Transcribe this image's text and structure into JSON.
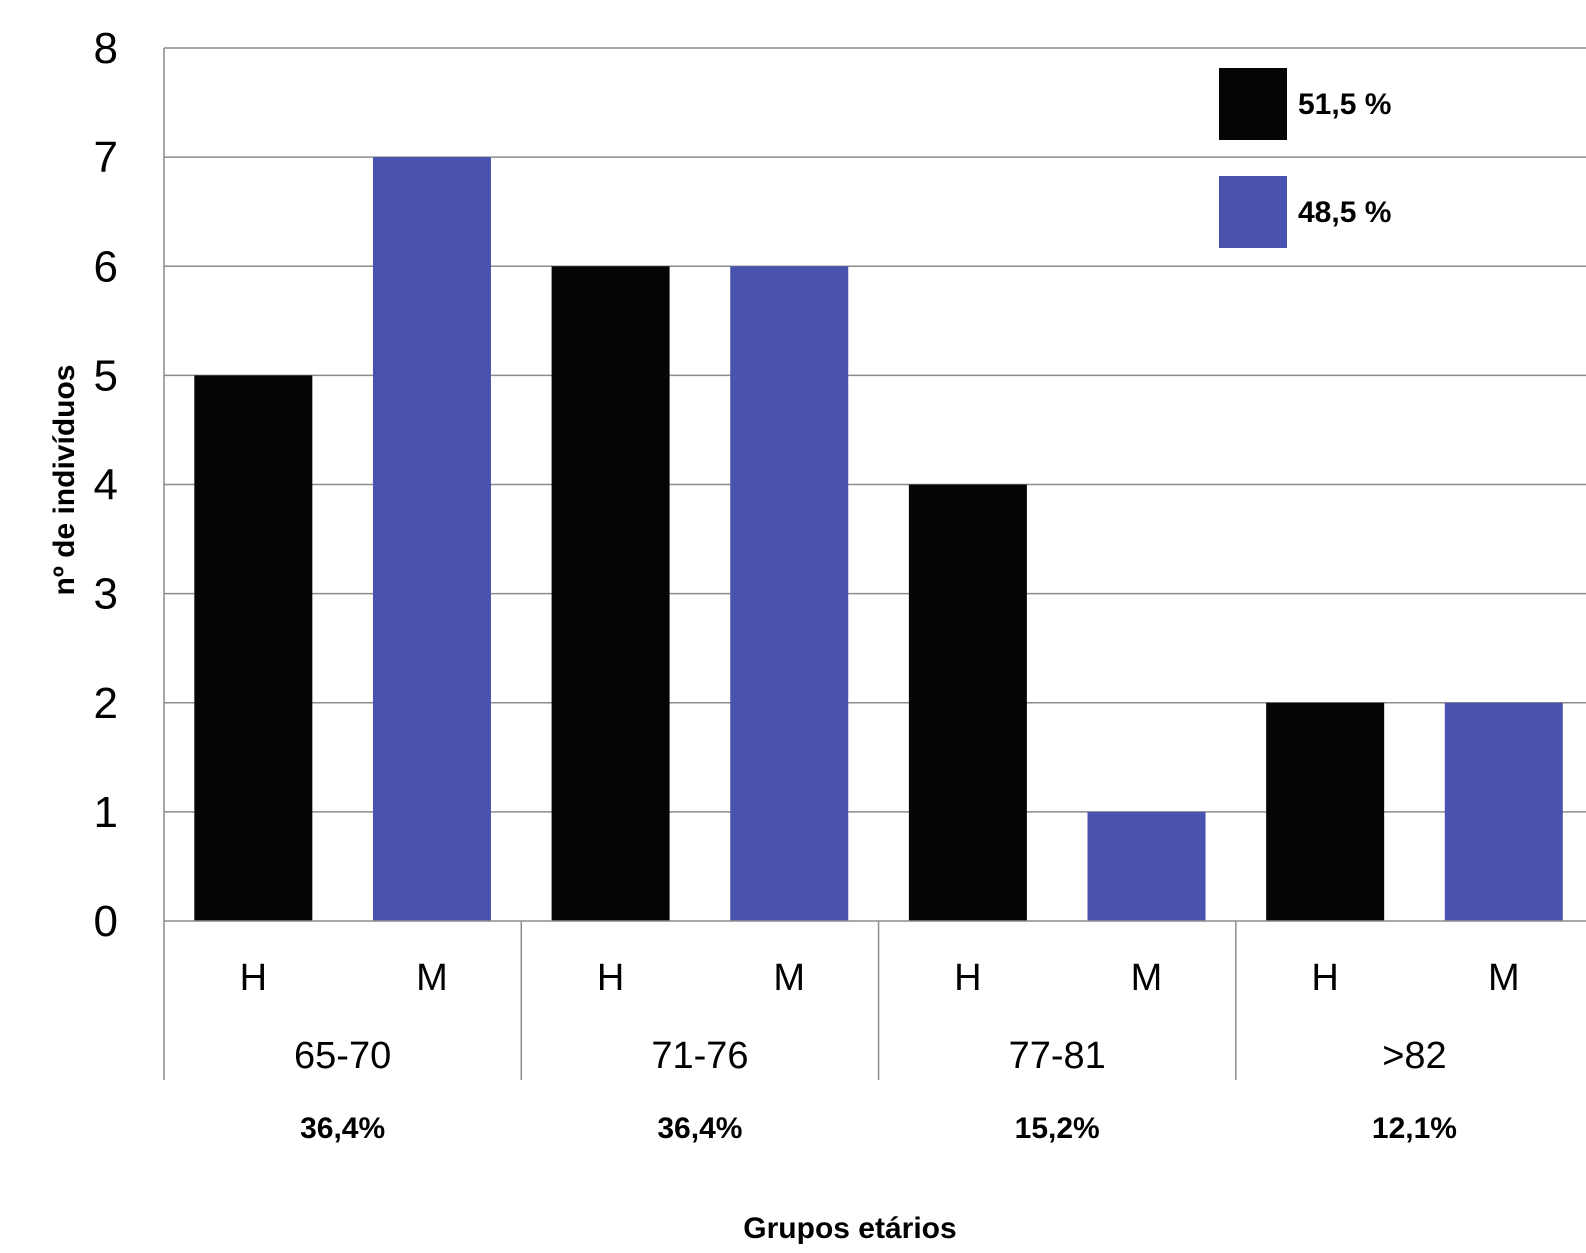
{
  "chart_data": {
    "type": "bar",
    "ylabel": "nº de indivíduos",
    "xlabel": "Grupos etários",
    "ylim": [
      0,
      8
    ],
    "yticks": [
      0,
      1,
      2,
      3,
      4,
      5,
      6,
      7,
      8
    ],
    "grid": true,
    "legend_position": "top-right",
    "groups": [
      {
        "label": "65-70",
        "percent": "36,4%",
        "bars": [
          {
            "label": "H",
            "series": 0,
            "value": 5
          },
          {
            "label": "M",
            "series": 1,
            "value": 7
          }
        ]
      },
      {
        "label": "71-76",
        "percent": "36,4%",
        "bars": [
          {
            "label": "H",
            "series": 0,
            "value": 6
          },
          {
            "label": "M",
            "series": 1,
            "value": 6
          }
        ]
      },
      {
        "label": "77-81",
        "percent": "15,2%",
        "bars": [
          {
            "label": "H",
            "series": 0,
            "value": 4
          },
          {
            "label": "M",
            "series": 1,
            "value": 1
          }
        ]
      },
      {
        "label": ">82",
        "percent": "12,1%",
        "bars": [
          {
            "label": "H",
            "series": 0,
            "value": 2
          },
          {
            "label": "M",
            "series": 1,
            "value": 2
          }
        ]
      }
    ],
    "series": [
      {
        "legend_text": "51,5 %",
        "color": "#050505"
      },
      {
        "legend_text": "48,5 %",
        "color": "#4a52b0"
      }
    ]
  }
}
